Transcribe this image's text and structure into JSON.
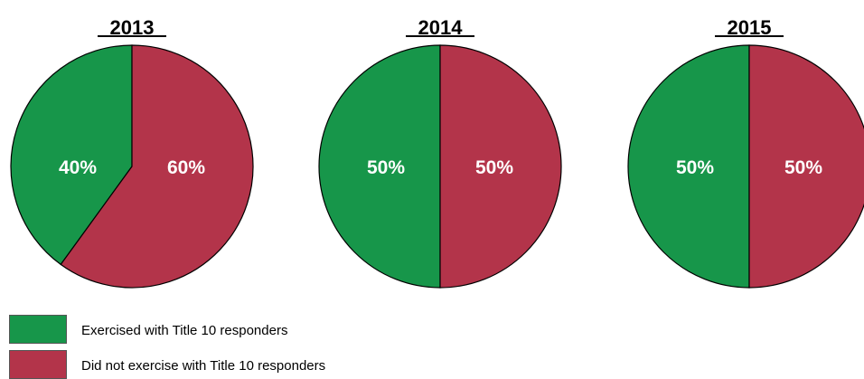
{
  "colors": {
    "exercised": "#17964a",
    "not_exercised": "#b3344a"
  },
  "legend": [
    {
      "label": "Exercised with Title 10 responders",
      "color": "#17964a"
    },
    {
      "label": "Did not exercise with Title 10 responders",
      "color": "#b3344a"
    }
  ],
  "chart_data": [
    {
      "type": "pie",
      "title": "2013",
      "slices": [
        {
          "name": "Exercised with Title 10 responders",
          "value": 40,
          "label": "40%",
          "color": "#17964a"
        },
        {
          "name": "Did not exercise with Title 10 responders",
          "value": 60,
          "label": "60%",
          "color": "#b3344a"
        }
      ]
    },
    {
      "type": "pie",
      "title": "2014",
      "slices": [
        {
          "name": "Exercised with Title 10 responders",
          "value": 50,
          "label": "50%",
          "color": "#17964a"
        },
        {
          "name": "Did not exercise with Title 10 responders",
          "value": 50,
          "label": "50%",
          "color": "#b3344a"
        }
      ]
    },
    {
      "type": "pie",
      "title": "2015",
      "slices": [
        {
          "name": "Exercised with Title 10 responders",
          "value": 50,
          "label": "50%",
          "color": "#17964a"
        },
        {
          "name": "Did not exercise with Title 10 responders",
          "value": 50,
          "label": "50%",
          "color": "#b3344a"
        }
      ]
    }
  ]
}
